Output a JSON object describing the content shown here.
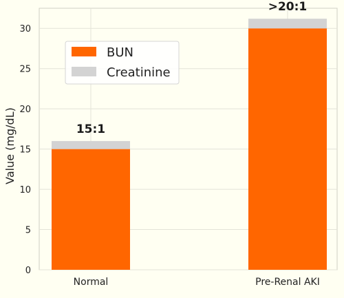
{
  "chart_data": {
    "type": "bar",
    "stacked": true,
    "title": "",
    "xlabel": "",
    "ylabel": "Value (mg/dL)",
    "ylim": [
      0,
      32.5
    ],
    "yticks": [
      0,
      5,
      10,
      15,
      20,
      25,
      30
    ],
    "grid": true,
    "legend_position": "upper-left",
    "categories": [
      "Normal",
      "Pre-Renal AKI"
    ],
    "series": [
      {
        "name": "BUN",
        "values": [
          15,
          30
        ],
        "color": "#ff6600"
      },
      {
        "name": "Creatinine",
        "values": [
          1,
          1.2
        ],
        "color": "#d3d3d3"
      }
    ],
    "annotations": [
      "15:1",
      ">20:1"
    ]
  }
}
